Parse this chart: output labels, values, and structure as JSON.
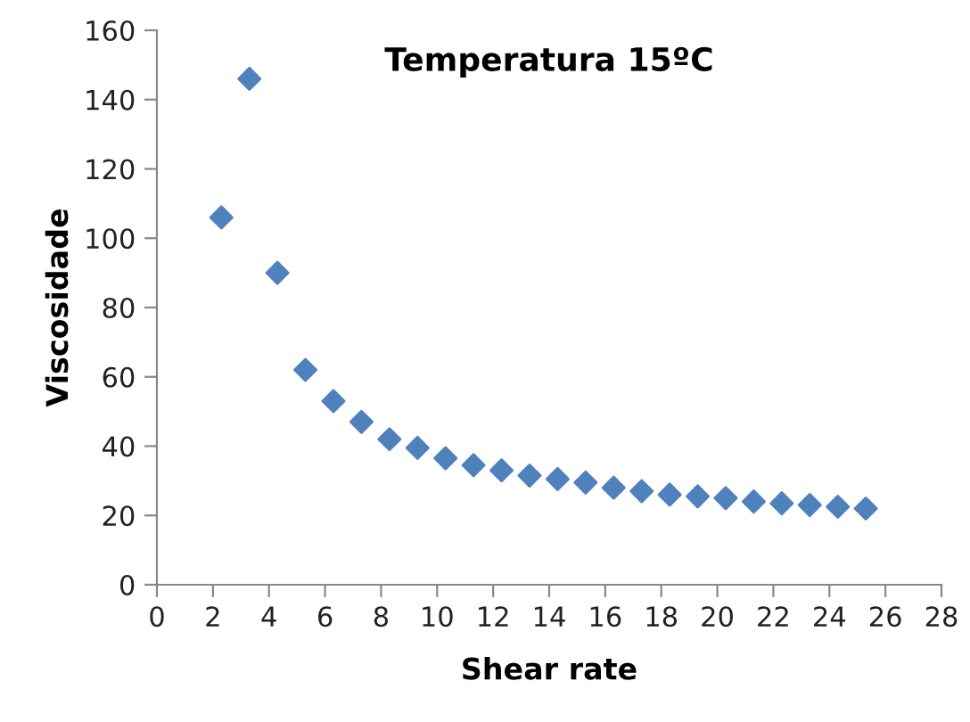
{
  "chart_data": {
    "type": "scatter",
    "title": "Temperatura 15ºC",
    "xlabel": "Shear rate",
    "ylabel": "Viscosidade",
    "x": [
      2.3,
      3.3,
      4.3,
      5.3,
      6.3,
      7.3,
      8.3,
      9.3,
      10.3,
      11.3,
      12.3,
      13.3,
      14.3,
      15.3,
      16.3,
      17.3,
      18.3,
      19.3,
      20.3,
      21.3,
      22.3,
      23.3,
      24.3,
      25.3
    ],
    "series": [
      {
        "color": "#4f81bd",
        "values": [
          106,
          146,
          90,
          62,
          53,
          47,
          42,
          39.5,
          36.5,
          34.5,
          33,
          31.5,
          30.5,
          29.5,
          28,
          27,
          26,
          25.5,
          25,
          24,
          23.5,
          23,
          22.5,
          22
        ]
      }
    ],
    "marker": "diamond",
    "xlim": [
      0,
      28
    ],
    "xticks": [
      0,
      2,
      4,
      6,
      8,
      10,
      12,
      14,
      16,
      18,
      20,
      22,
      24,
      26,
      28
    ],
    "ylim": [
      0,
      160
    ],
    "yticks": [
      0,
      20,
      40,
      60,
      80,
      100,
      120,
      140,
      160
    ],
    "grid": false,
    "legend": false
  }
}
